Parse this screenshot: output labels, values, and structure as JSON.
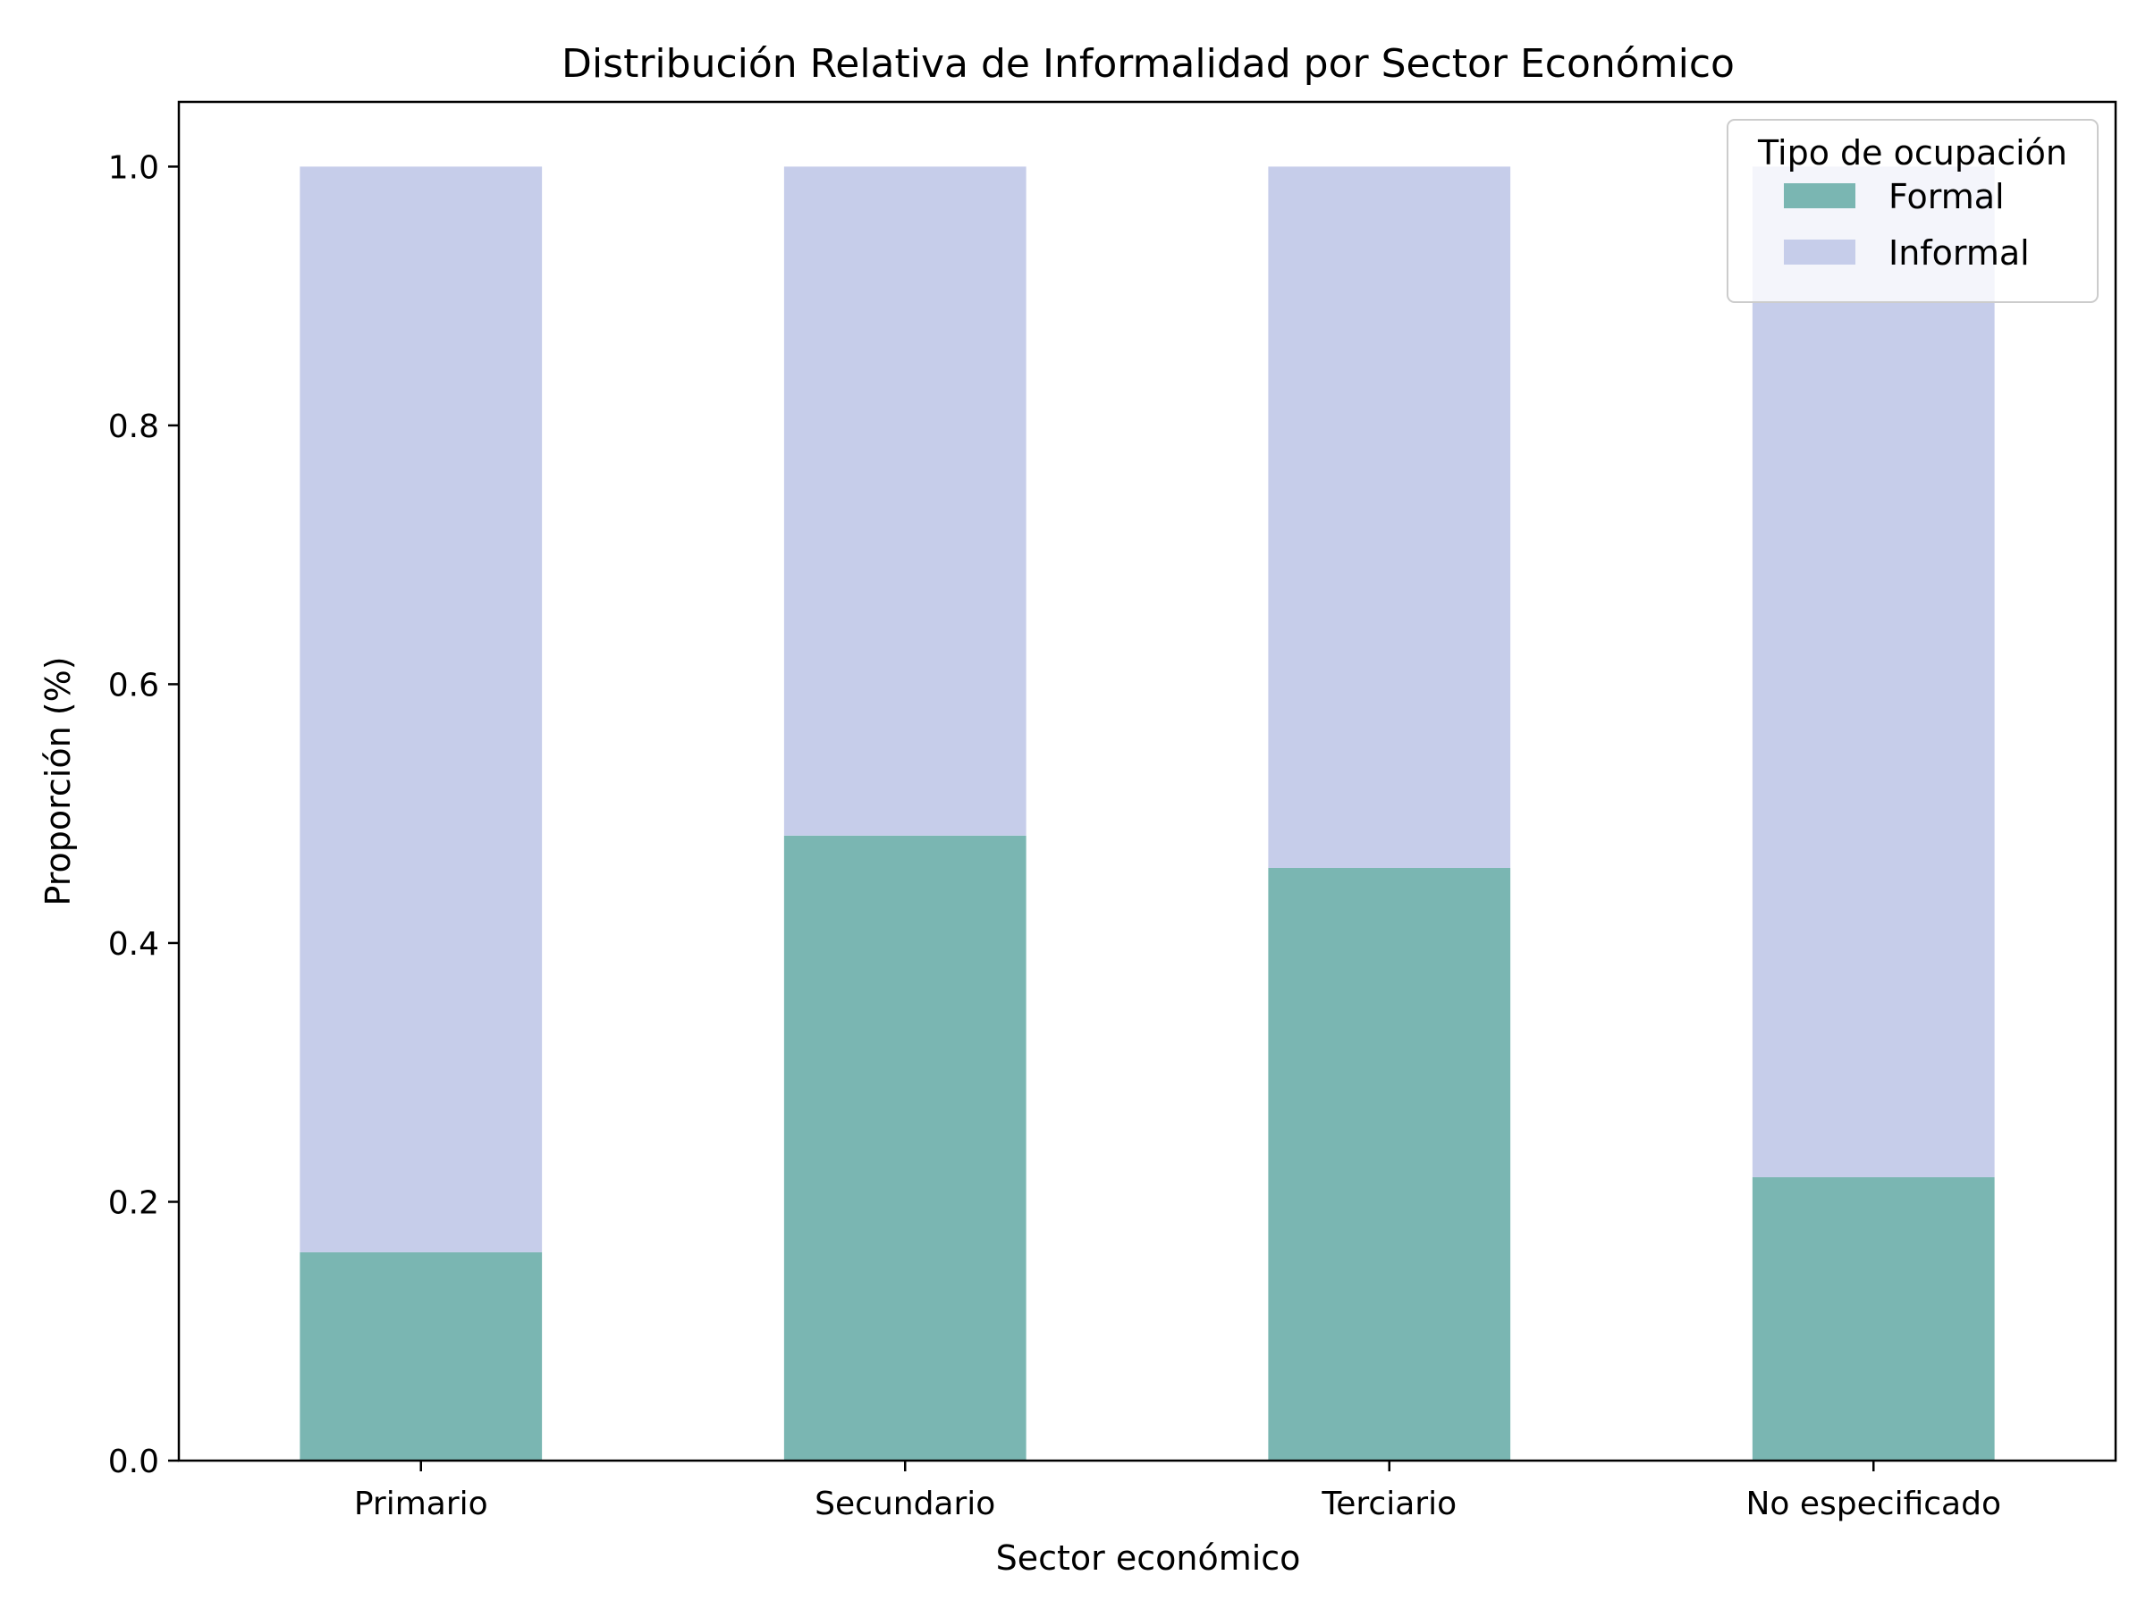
{
  "chart_data": {
    "type": "bar",
    "stacked": true,
    "title": "Distribución Relativa de Informalidad por Sector Económico",
    "xlabel": "Sector económico",
    "ylabel": "Proporción (%)",
    "categories": [
      "Primario",
      "Secundario",
      "Terciario",
      "No especificado"
    ],
    "series": [
      {
        "name": "Formal",
        "values": [
          0.161,
          0.483,
          0.458,
          0.219
        ],
        "color": "#7ab6b2"
      },
      {
        "name": "Informal",
        "values": [
          0.839,
          0.517,
          0.542,
          0.781
        ],
        "color": "#c6cdea"
      }
    ],
    "ylim": [
      0,
      1.05
    ],
    "yticks": [
      0.0,
      0.2,
      0.4,
      0.6,
      0.8,
      1.0
    ],
    "ytick_labels": [
      "0.0",
      "0.2",
      "0.4",
      "0.6",
      "0.8",
      "1.0"
    ],
    "grid": false,
    "legend": {
      "title": "Tipo de ocupación",
      "placement": "top-right"
    }
  }
}
